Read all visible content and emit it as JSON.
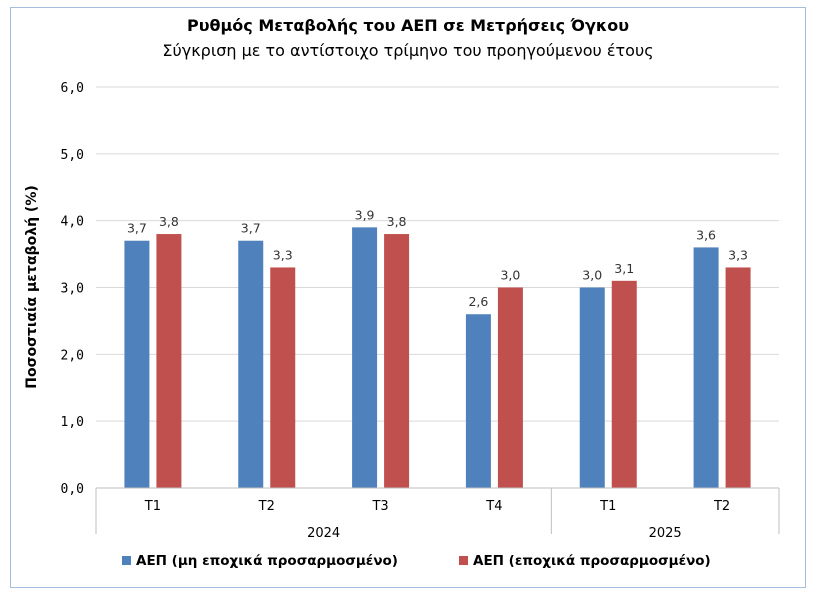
{
  "chart_data": {
    "type": "bar",
    "title": "Ρυθμός Μεταβολής του ΑΕΠ σε Μετρήσεις Όγκου",
    "subtitle": "Σύγκριση με το αντίστοιχο τρίμηνο του προηγούμενου έτους",
    "ylabel": "Ποσοστιαία μεταβολή (%)",
    "xlabel": "",
    "ylim": [
      0,
      6
    ],
    "yticks": [
      "0,0",
      "1,0",
      "2,0",
      "3,0",
      "4,0",
      "5,0",
      "6,0"
    ],
    "grid": true,
    "legend_position": "bottom",
    "categories": [
      "T1",
      "T2",
      "T3",
      "T4",
      "T1",
      "T2"
    ],
    "groups": [
      {
        "label": "2024",
        "count": 4
      },
      {
        "label": "2025",
        "count": 2
      }
    ],
    "series": [
      {
        "name": "ΑΕΠ (μη εποχικά προσαρμοσμένο)",
        "color": "#4f81bd",
        "values": [
          3.7,
          3.7,
          3.9,
          2.6,
          3.0,
          3.6
        ],
        "labels": [
          "3,7",
          "3,7",
          "3,9",
          "2,6",
          "3,0",
          "3,6"
        ]
      },
      {
        "name": "ΑΕΠ (εποχικά προσαρμοσμένο)",
        "color": "#c0504d",
        "values": [
          3.8,
          3.3,
          3.8,
          3.0,
          3.1,
          3.3
        ],
        "labels": [
          "3,8",
          "3,3",
          "3,8",
          "3,0",
          "3,1",
          "3,3"
        ]
      }
    ]
  }
}
